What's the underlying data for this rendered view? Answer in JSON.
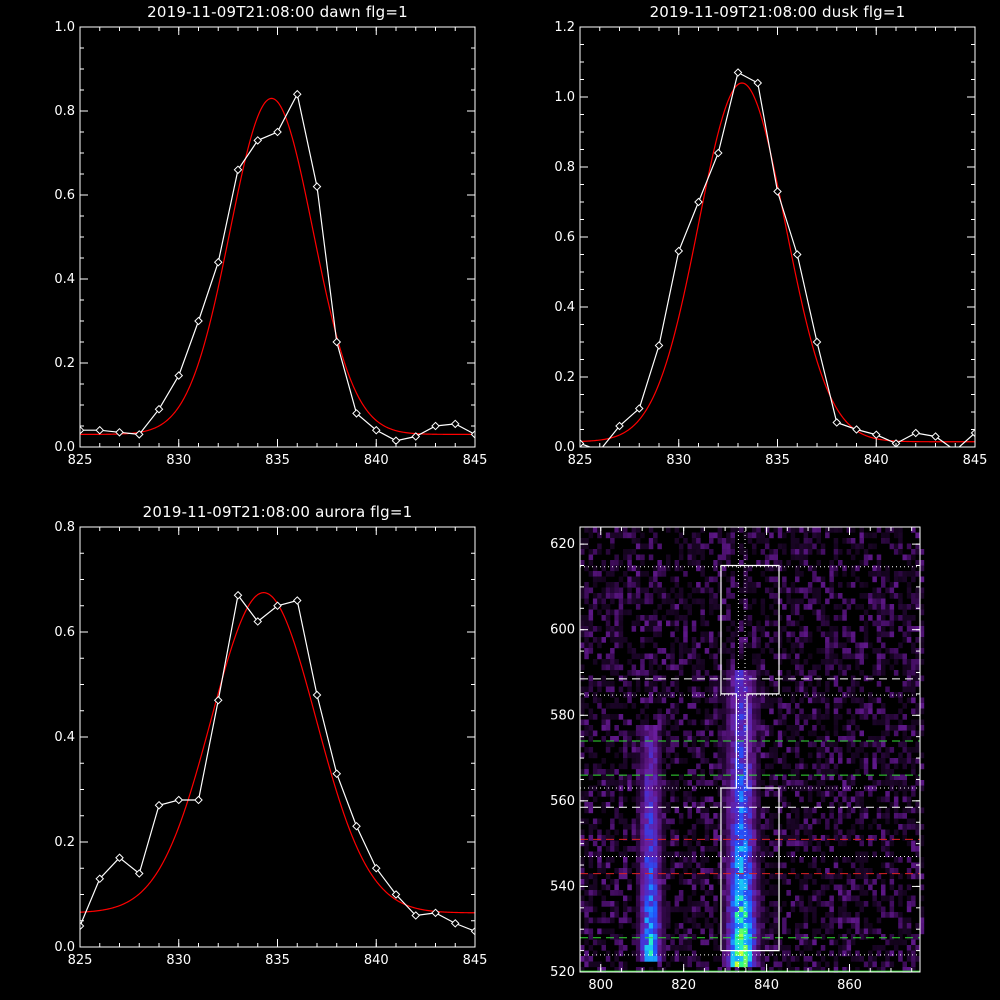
{
  "chart_data": [
    {
      "type": "line",
      "title": "2019-11-09T21:08:00 dawn flg=1",
      "xlim": [
        825,
        845
      ],
      "ylim": [
        0,
        1.0
      ],
      "xticks": [
        825,
        830,
        835,
        840,
        845
      ],
      "yticks": [
        0.0,
        0.2,
        0.4,
        0.6,
        0.8,
        1.0
      ],
      "ytick_labels": [
        "0.0",
        "0.2",
        "0.4",
        "0.6",
        "0.8",
        "1.0"
      ],
      "series": [
        {
          "style": "white-diamond",
          "color": "#ffffff",
          "x": [
            825,
            826,
            827,
            828,
            829,
            830,
            831,
            832,
            833,
            834,
            835,
            836,
            837,
            838,
            839,
            840,
            841,
            842,
            843,
            844,
            845
          ],
          "y": [
            0.04,
            0.04,
            0.035,
            0.03,
            0.09,
            0.17,
            0.3,
            0.44,
            0.66,
            0.73,
            0.75,
            0.84,
            0.62,
            0.25,
            0.08,
            0.04,
            0.015,
            0.025,
            0.05,
            0.055,
            0.03
          ]
        },
        {
          "style": "gaussian-fit",
          "color": "#ff0000",
          "amplitude": 0.8,
          "center": 834.7,
          "sigma": 2.1,
          "offset": 0.03
        }
      ]
    },
    {
      "type": "line",
      "title": "2019-11-09T21:08:00 dusk flg=1",
      "xlim": [
        825,
        845
      ],
      "ylim": [
        0,
        1.2
      ],
      "xticks": [
        825,
        830,
        835,
        840,
        845
      ],
      "yticks": [
        0.0,
        0.2,
        0.4,
        0.6,
        0.8,
        1.0,
        1.2
      ],
      "ytick_labels": [
        "0.0",
        "0.2",
        "0.4",
        "0.6",
        "0.8",
        "1.0",
        "1.2"
      ],
      "series": [
        {
          "style": "white-diamond",
          "color": "#ffffff",
          "x": [
            825,
            826,
            827,
            828,
            829,
            830,
            831,
            832,
            833,
            834,
            835,
            836,
            837,
            838,
            839,
            840,
            841,
            842,
            843,
            844,
            845
          ],
          "y": [
            0.01,
            -0.01,
            0.06,
            0.11,
            0.29,
            0.56,
            0.7,
            0.84,
            1.07,
            1.04,
            0.73,
            0.55,
            0.3,
            0.07,
            0.05,
            0.035,
            0.01,
            0.04,
            0.03,
            -0.01,
            0.04
          ]
        },
        {
          "style": "gaussian-fit",
          "color": "#ff0000",
          "amplitude": 1.025,
          "center": 833.2,
          "sigma": 2.2,
          "offset": 0.015
        }
      ]
    },
    {
      "type": "line",
      "title": "2019-11-09T21:08:00 aurora flg=1",
      "xlim": [
        825,
        845
      ],
      "ylim": [
        0,
        0.8
      ],
      "xticks": [
        825,
        830,
        835,
        840,
        845
      ],
      "yticks": [
        0.0,
        0.2,
        0.4,
        0.6,
        0.8
      ],
      "ytick_labels": [
        "0.0",
        "0.2",
        "0.4",
        "0.6",
        "0.8"
      ],
      "series": [
        {
          "style": "white-diamond",
          "color": "#ffffff",
          "x": [
            825,
            826,
            827,
            828,
            829,
            830,
            831,
            832,
            833,
            834,
            835,
            836,
            837,
            838,
            839,
            840,
            841,
            842,
            843,
            844,
            845
          ],
          "y": [
            0.04,
            0.13,
            0.17,
            0.14,
            0.27,
            0.28,
            0.28,
            0.47,
            0.67,
            0.62,
            0.65,
            0.66,
            0.48,
            0.33,
            0.23,
            0.15,
            0.1,
            0.06,
            0.065,
            0.045,
            0.03
          ]
        },
        {
          "style": "gaussian-fit",
          "color": "#ff0000",
          "amplitude": 0.61,
          "center": 834.3,
          "sigma": 2.65,
          "offset": 0.065
        }
      ]
    },
    {
      "type": "heatmap",
      "title": "",
      "xlim": [
        795,
        877
      ],
      "ylim": [
        520,
        624
      ],
      "xticks": [
        800,
        820,
        840,
        860
      ],
      "yticks": [
        520,
        540,
        560,
        580,
        600,
        620
      ],
      "ytick_labels": [
        "520",
        "540",
        "560",
        "580",
        "600",
        "620"
      ],
      "colormap": [
        "#000000",
        "#3a0a55",
        "#6a1c9a",
        "#4a2fd0",
        "#1f57ff",
        "#18a8ff",
        "#1ee8e8",
        "#33ff7a",
        "#c8ff33"
      ],
      "emission_bands": [
        {
          "x_center": 834,
          "width": 8,
          "y_from": 521,
          "y_to": 590,
          "peak_y": 526,
          "peak": 0.95
        },
        {
          "x_center": 812,
          "width": 6,
          "y_from": 522,
          "y_to": 578,
          "peak_y": 526,
          "peak": 0.7
        }
      ],
      "white_dotted_vlines": [
        833.2,
        834.8
      ],
      "white_dotted_hlines": [
        614.7,
        584.7,
        563,
        547,
        524
      ],
      "white_dashed_hlines": [
        588.5,
        558.5
      ],
      "green_dashed_hlines": [
        574,
        566,
        528
      ],
      "red_dashed_hlines": [
        551,
        543
      ],
      "green_bottom_line": 520.2,
      "boxes": [
        {
          "x0": 829,
          "x1": 843,
          "y0": 585,
          "y1": 615
        },
        {
          "x0": 829,
          "x1": 843,
          "y0": 525,
          "y1": 563
        }
      ]
    }
  ]
}
